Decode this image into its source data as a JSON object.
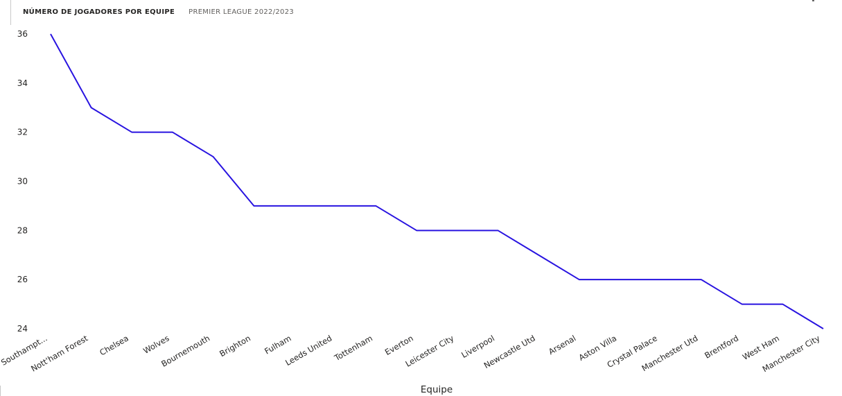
{
  "header": {
    "title": "NÚMERO DE JOGADORES POR EQUIPE",
    "subtitle": "PREMIER LEAGUE 2022/2023"
  },
  "colors": {
    "line": "#2813e0",
    "text": "#252423"
  },
  "chart_data": {
    "type": "line",
    "title": "NÚMERO DE JOGADORES POR EQUIPE",
    "subtitle": "PREMIER LEAGUE 2022/2023",
    "xlabel": "Equipe",
    "ylabel": "",
    "categories": [
      "Southampt...",
      "Nott'ham Forest",
      "Chelsea",
      "Wolves",
      "Bournemouth",
      "Brighton",
      "Fulham",
      "Leeds United",
      "Tottenham",
      "Everton",
      "Leicester City",
      "Liverpool",
      "Newcastle Utd",
      "Arsenal",
      "Aston Villa",
      "Crystal Palace",
      "Manchester Utd",
      "Brentford",
      "West Ham",
      "Manchester City"
    ],
    "values": [
      36,
      33,
      32,
      32,
      31,
      29,
      29,
      29,
      29,
      28,
      28,
      28,
      27,
      26,
      26,
      26,
      26,
      25,
      25,
      24
    ],
    "ylim": [
      24,
      36
    ],
    "yticks": [
      "24",
      "26",
      "28",
      "30",
      "32",
      "34",
      "36"
    ],
    "grid": false,
    "legend": "none"
  }
}
